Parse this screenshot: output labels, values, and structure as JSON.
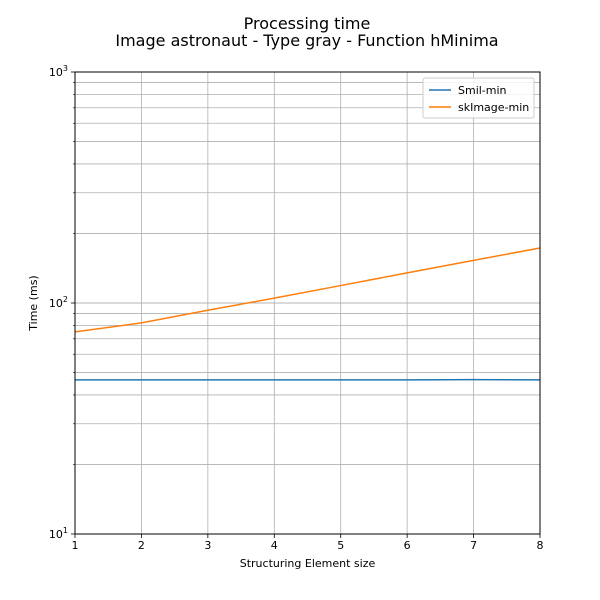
{
  "chart_data": {
    "type": "line",
    "title": "Processing time",
    "subtitle": "Image astronaut - Type gray - Function hMinima",
    "xlabel": "Structuring Element size",
    "ylabel": "Time (ms)",
    "xlim": [
      1,
      8
    ],
    "ylim": [
      10,
      1000
    ],
    "yscale": "log",
    "grid": true,
    "legend_position": "top-right",
    "x_ticks": [
      1,
      2,
      3,
      4,
      5,
      6,
      7,
      8
    ],
    "y_ticks": [
      10,
      100,
      1000
    ],
    "y_tick_labels": [
      {
        "base": "10",
        "exp": "1"
      },
      {
        "base": "10",
        "exp": "2"
      },
      {
        "base": "10",
        "exp": "3"
      }
    ],
    "x": [
      1,
      2,
      3,
      4,
      5,
      6,
      7,
      8
    ],
    "series": [
      {
        "name": "Smil-min",
        "color": "#1f77b4",
        "values": [
          46.5,
          46.5,
          46.5,
          46.5,
          46.5,
          46.5,
          46.6,
          46.5
        ]
      },
      {
        "name": "skImage-min",
        "color": "#ff7f0e",
        "values": [
          75,
          82,
          93,
          105,
          119,
          135,
          153,
          173
        ]
      }
    ]
  }
}
